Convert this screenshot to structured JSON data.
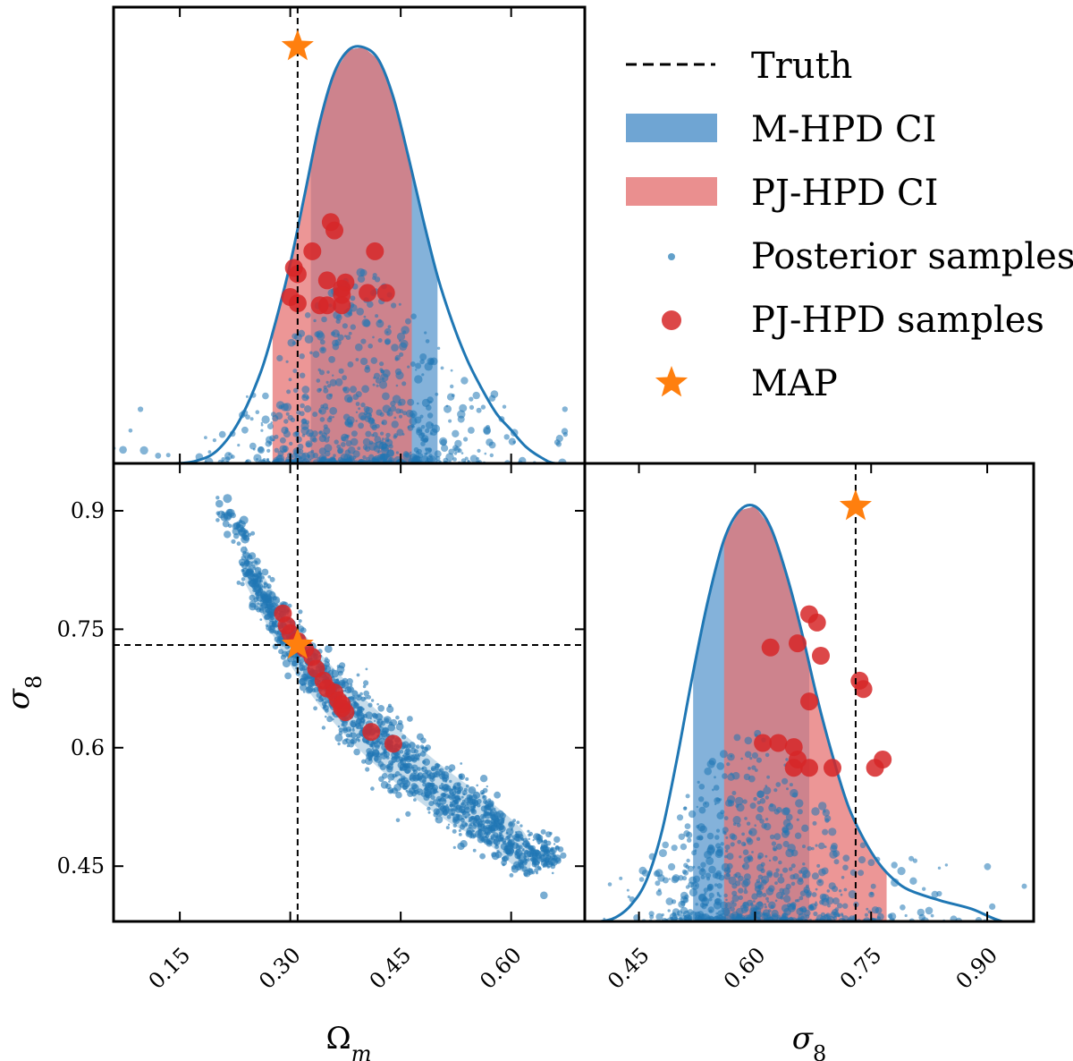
{
  "colors": {
    "samples": "#1f77b4",
    "m_hpd": "#6fa5d3",
    "pj_hpd": "#e57373",
    "pj_points": "#d62728",
    "map": "#ff7f0e",
    "truth": "#000000"
  },
  "legend": {
    "placement": "top-right",
    "items": [
      {
        "key": "truth",
        "label": "Truth",
        "marker": "dashed-line"
      },
      {
        "key": "m_hpd",
        "label": "M-HPD CI",
        "marker": "patch"
      },
      {
        "key": "pj_hpd",
        "label": "PJ-HPD CI",
        "marker": "patch"
      },
      {
        "key": "posterior",
        "label": "Posterior samples",
        "marker": "small-dot"
      },
      {
        "key": "pj_samples",
        "label": "PJ-HPD samples",
        "marker": "large-dot"
      },
      {
        "key": "map",
        "label": "MAP",
        "marker": "star"
      }
    ]
  },
  "chart_data": [
    {
      "type": "area",
      "panel": "omega_m-marginal",
      "xlabel": "Ω_m",
      "xlim": [
        0.06,
        0.7
      ],
      "xticks": [
        0.15,
        0.3,
        0.45,
        0.6
      ],
      "xtick_labels": [
        "0.15",
        "0.30",
        "0.45",
        "0.60"
      ],
      "truth": 0.31,
      "map": 0.31,
      "m_hpd": [
        0.328,
        0.5
      ],
      "pj_hpd": [
        0.276,
        0.465
      ],
      "density": {
        "x": [
          0.06,
          0.1,
          0.14,
          0.17,
          0.2,
          0.23,
          0.26,
          0.28,
          0.3,
          0.32,
          0.34,
          0.36,
          0.38,
          0.4,
          0.42,
          0.44,
          0.46,
          0.48,
          0.5,
          0.52,
          0.54,
          0.56,
          0.58,
          0.6,
          0.62,
          0.64,
          0.66,
          0.7
        ],
        "y": [
          0.0,
          0.0,
          0.0,
          0.005,
          0.03,
          0.1,
          0.22,
          0.34,
          0.48,
          0.65,
          0.82,
          0.94,
          0.995,
          1.0,
          0.97,
          0.88,
          0.74,
          0.59,
          0.45,
          0.34,
          0.25,
          0.18,
          0.12,
          0.08,
          0.04,
          0.015,
          0.0,
          0.0
        ]
      },
      "pj_samples": [
        {
          "x": 0.355,
          "y": 0.58
        },
        {
          "x": 0.36,
          "y": 0.56
        },
        {
          "x": 0.33,
          "y": 0.51
        },
        {
          "x": 0.415,
          "y": 0.51
        },
        {
          "x": 0.305,
          "y": 0.47
        },
        {
          "x": 0.31,
          "y": 0.455
        },
        {
          "x": 0.35,
          "y": 0.44
        },
        {
          "x": 0.375,
          "y": 0.435
        },
        {
          "x": 0.3,
          "y": 0.4
        },
        {
          "x": 0.34,
          "y": 0.38
        },
        {
          "x": 0.37,
          "y": 0.42
        },
        {
          "x": 0.37,
          "y": 0.405
        },
        {
          "x": 0.405,
          "y": 0.41
        },
        {
          "x": 0.43,
          "y": 0.41
        },
        {
          "x": 0.37,
          "y": 0.38
        },
        {
          "x": 0.35,
          "y": 0.38
        },
        {
          "x": 0.31,
          "y": 0.385
        }
      ]
    },
    {
      "type": "scatter",
      "panel": "joint",
      "xlabel": "Ω_m",
      "ylabel": "σ_8",
      "xlim": [
        0.06,
        0.7
      ],
      "ylim": [
        0.38,
        0.96
      ],
      "xticks": [
        0.15,
        0.3,
        0.45,
        0.6
      ],
      "xtick_labels": [
        "0.15",
        "0.30",
        "0.45",
        "0.60"
      ],
      "yticks": [
        0.45,
        0.6,
        0.75,
        0.9
      ],
      "ytick_labels": [
        "0.45",
        "0.6",
        "0.75",
        "0.9"
      ],
      "truth": {
        "x": 0.31,
        "y": 0.73
      },
      "map": {
        "x": 0.31,
        "y": 0.73
      },
      "contour_ridge": {
        "x": [
          0.24,
          0.28,
          0.32,
          0.37,
          0.42,
          0.47,
          0.52,
          0.57,
          0.62
        ],
        "y": [
          0.83,
          0.765,
          0.71,
          0.655,
          0.61,
          0.57,
          0.535,
          0.505,
          0.465
        ]
      },
      "pj_samples": [
        {
          "x": 0.29,
          "y": 0.77
        },
        {
          "x": 0.295,
          "y": 0.755
        },
        {
          "x": 0.3,
          "y": 0.745
        },
        {
          "x": 0.31,
          "y": 0.735
        },
        {
          "x": 0.335,
          "y": 0.7
        },
        {
          "x": 0.345,
          "y": 0.685
        },
        {
          "x": 0.35,
          "y": 0.675
        },
        {
          "x": 0.36,
          "y": 0.67
        },
        {
          "x": 0.365,
          "y": 0.66
        },
        {
          "x": 0.37,
          "y": 0.655
        },
        {
          "x": 0.375,
          "y": 0.645
        },
        {
          "x": 0.37,
          "y": 0.65
        },
        {
          "x": 0.41,
          "y": 0.62
        },
        {
          "x": 0.44,
          "y": 0.605
        },
        {
          "x": 0.32,
          "y": 0.725
        },
        {
          "x": 0.33,
          "y": 0.715
        }
      ]
    },
    {
      "type": "area",
      "panel": "sigma_8-marginal",
      "xlabel": "σ_8",
      "xlim": [
        0.38,
        0.96
      ],
      "xticks": [
        0.45,
        0.6,
        0.75,
        0.9
      ],
      "xtick_labels": [
        "0.45",
        "0.60",
        "0.75",
        "0.90"
      ],
      "truth": 0.73,
      "map": 0.73,
      "m_hpd": [
        0.52,
        0.67
      ],
      "pj_hpd": [
        0.56,
        0.77
      ],
      "density": {
        "x": [
          0.38,
          0.4,
          0.42,
          0.44,
          0.46,
          0.48,
          0.5,
          0.52,
          0.54,
          0.56,
          0.58,
          0.6,
          0.62,
          0.64,
          0.66,
          0.68,
          0.7,
          0.72,
          0.74,
          0.76,
          0.78,
          0.8,
          0.84,
          0.88,
          0.92,
          0.96
        ],
        "y": [
          0.0,
          0.0,
          0.01,
          0.04,
          0.1,
          0.22,
          0.4,
          0.6,
          0.78,
          0.92,
          0.99,
          1.0,
          0.95,
          0.84,
          0.7,
          0.54,
          0.4,
          0.28,
          0.2,
          0.14,
          0.1,
          0.075,
          0.05,
          0.03,
          0.0,
          0.0
        ]
      },
      "pj_samples": [
        {
          "x": 0.67,
          "y": 0.74
        },
        {
          "x": 0.68,
          "y": 0.72
        },
        {
          "x": 0.62,
          "y": 0.66
        },
        {
          "x": 0.655,
          "y": 0.67
        },
        {
          "x": 0.685,
          "y": 0.64
        },
        {
          "x": 0.735,
          "y": 0.58
        },
        {
          "x": 0.74,
          "y": 0.56
        },
        {
          "x": 0.67,
          "y": 0.53
        },
        {
          "x": 0.61,
          "y": 0.43
        },
        {
          "x": 0.63,
          "y": 0.43
        },
        {
          "x": 0.65,
          "y": 0.42
        },
        {
          "x": 0.655,
          "y": 0.39
        },
        {
          "x": 0.67,
          "y": 0.37
        },
        {
          "x": 0.7,
          "y": 0.37
        },
        {
          "x": 0.65,
          "y": 0.37
        },
        {
          "x": 0.765,
          "y": 0.39
        },
        {
          "x": 0.755,
          "y": 0.37
        }
      ]
    }
  ]
}
